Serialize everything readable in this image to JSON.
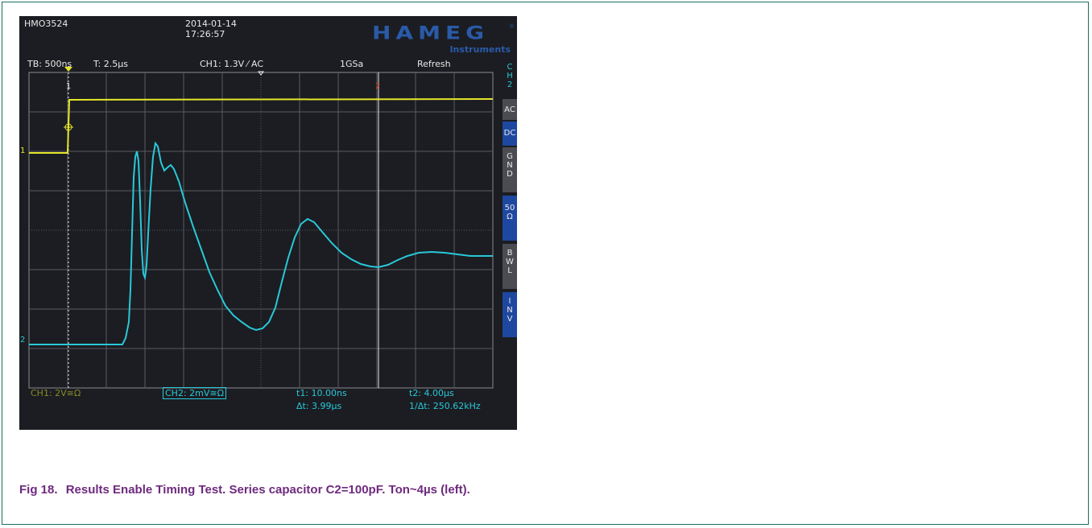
{
  "scope": {
    "model": "HMO3524",
    "date": "2014-01-14",
    "time": "17:26:57",
    "brand": "HAMEG",
    "brand_registered": "®",
    "brand_sub": "Instruments",
    "status": {
      "timebase": "TB: 500ns",
      "trigger_time": "T: 2.5µs",
      "trigger": "CH1: 1.3V ⁄ AC",
      "sample_rate": "1GSa",
      "mode": "Refresh"
    },
    "side_menu": {
      "channel": [
        "C",
        "H",
        "2"
      ],
      "buttons": [
        {
          "label": "AC",
          "active": false
        },
        {
          "label": "DC",
          "active": true
        },
        {
          "label": "G N D",
          "active": false
        },
        {
          "label": "50 Ω",
          "active": true
        },
        {
          "label": "B W L",
          "active": false
        },
        {
          "label": "I N V",
          "active": true
        }
      ]
    },
    "footer": {
      "ch1": "CH1: 2V≅Ω",
      "ch2": "CH2: 2mV≅Ω",
      "t1": "t1: 10.00ns",
      "dt": "Δt: 3.99µs",
      "t2": "t2: 4.00µs",
      "inv_dt": "1/Δt: 250.62kHz"
    },
    "markers": {
      "ch1": "1",
      "ch2": "2",
      "cursor1": "1",
      "cursor2": "2"
    },
    "colors": {
      "ch1": "#e6e62a",
      "ch2": "#29c8d8",
      "grid": "#5a5c60",
      "background": "#1b1d22",
      "cursor": "#e8e8e8",
      "cursor2_marker": "#e04020"
    }
  },
  "caption": {
    "fig": "Fig 18.",
    "text": "Results Enable Timing Test. Series capacitor C2=100pF. Ton~4µs (left)."
  }
}
